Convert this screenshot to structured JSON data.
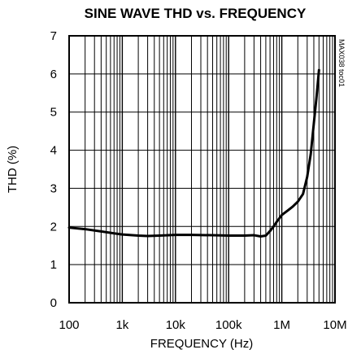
{
  "chart_data": {
    "type": "line",
    "title": "SINE WAVE THD vs. FREQUENCY",
    "xlabel": "FREQUENCY (Hz)",
    "ylabel": "THD (%)",
    "x_scale": "log",
    "xlim": [
      100,
      10000000
    ],
    "ylim": [
      0,
      7
    ],
    "grid": true,
    "x_ticks": [
      "100",
      "1k",
      "10k",
      "100k",
      "1M",
      "10M"
    ],
    "y_ticks": [
      "0",
      "1",
      "2",
      "3",
      "4",
      "5",
      "6",
      "7"
    ],
    "annotation": "MAX038 toc01",
    "series": [
      {
        "x": [
          100,
          200,
          400,
          700,
          1000,
          2000,
          3000,
          5000,
          10000,
          20000,
          50000,
          100000,
          200000,
          300000,
          400000,
          500000,
          600000,
          700000,
          800000,
          1000000,
          1300000,
          1600000,
          2000000,
          2500000,
          3000000,
          3500000,
          4000000,
          4500000,
          5000000
        ],
        "y": [
          1.97,
          1.93,
          1.87,
          1.82,
          1.79,
          1.76,
          1.75,
          1.76,
          1.78,
          1.78,
          1.77,
          1.76,
          1.76,
          1.77,
          1.74,
          1.76,
          1.88,
          2.0,
          2.12,
          2.3,
          2.42,
          2.52,
          2.65,
          2.85,
          3.3,
          3.9,
          4.7,
          5.4,
          6.1
        ]
      }
    ]
  }
}
